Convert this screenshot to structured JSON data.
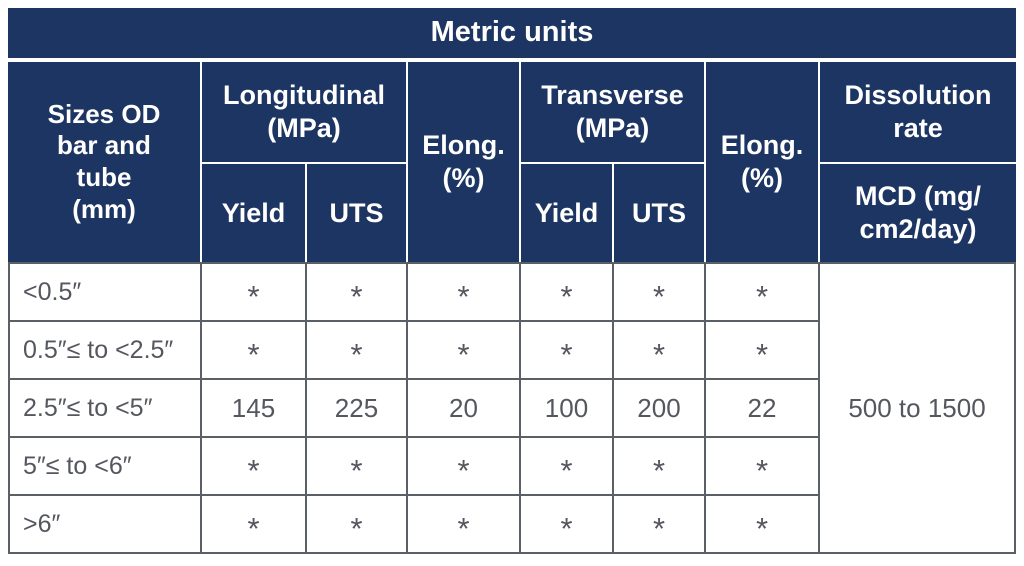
{
  "title": "Metric units",
  "header": {
    "sizes": "Sizes OD\nbar and\ntube\n(mm)",
    "longitudinal": "Longitudinal\n(MPa)",
    "yield_long": "Yield",
    "uts_long": "UTS",
    "elong_long": "Elong.\n(%)",
    "transverse": "Transverse\n(MPa)",
    "yield_trans": "Yield",
    "uts_trans": "UTS",
    "elong_trans": "Elong.\n(%)",
    "dissolution": "Dissolution\nrate",
    "mcd": "MCD (mg/\ncm2/day)"
  },
  "chart_data": {
    "type": "table",
    "title": "Metric units",
    "columns": [
      "Sizes OD bar and tube (mm)",
      "Longitudinal (MPa) Yield",
      "Longitudinal (MPa) UTS",
      "Elong. (%)",
      "Transverse (MPa) Yield",
      "Transverse (MPa) UTS",
      "Elong. (%)",
      "Dissolution rate MCD (mg/cm2/day)"
    ],
    "rows": [
      [
        "<0.5″",
        "*",
        "*",
        "*",
        "*",
        "*",
        "*",
        "500 to 1500"
      ],
      [
        "0.5″≤ to <2.5″",
        "*",
        "*",
        "*",
        "*",
        "*",
        "*",
        "500 to 1500"
      ],
      [
        "2.5″≤ to <5″",
        "145",
        "225",
        "20",
        "100",
        "200",
        "22",
        "500 to 1500"
      ],
      [
        "5″≤ to <6″",
        "*",
        "*",
        "*",
        "*",
        "*",
        "*",
        "500 to 1500"
      ],
      [
        ">6″",
        "*",
        "*",
        "*",
        "*",
        "*",
        "*",
        "500 to 1500"
      ]
    ],
    "layout": {
      "dissolution_cell_spans_all_rows": true
    }
  },
  "colors": {
    "header_navy": "#1d3563",
    "header_text": "#ffffff",
    "grid_gray": "#5b5f66",
    "data_text": "#54575e"
  }
}
